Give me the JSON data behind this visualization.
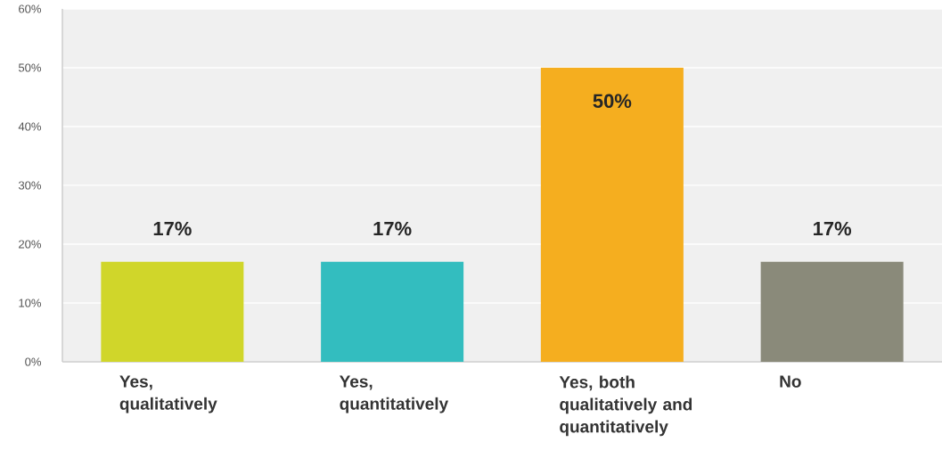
{
  "chart_data": {
    "type": "bar",
    "categories": [
      "Yes, qualitatively",
      "Yes, quantitatively",
      "Yes, both qualitatively and quantitatively",
      "No"
    ],
    "values": [
      17,
      17,
      50,
      17
    ],
    "colors": [
      "#d0d62a",
      "#33bdbf",
      "#f5ae1f",
      "#8a8a7a"
    ],
    "value_labels": [
      "17%",
      "17%",
      "50%",
      "17%"
    ],
    "ylim": [
      0,
      60
    ],
    "yticks": [
      {
        "value": 0,
        "label": "0%"
      },
      {
        "value": 10,
        "label": "10%"
      },
      {
        "value": 20,
        "label": "20%"
      },
      {
        "value": 30,
        "label": "30%"
      },
      {
        "value": 40,
        "label": "40%"
      },
      {
        "value": 50,
        "label": "50%"
      },
      {
        "value": 60,
        "label": "60%"
      }
    ],
    "grid": "y"
  }
}
